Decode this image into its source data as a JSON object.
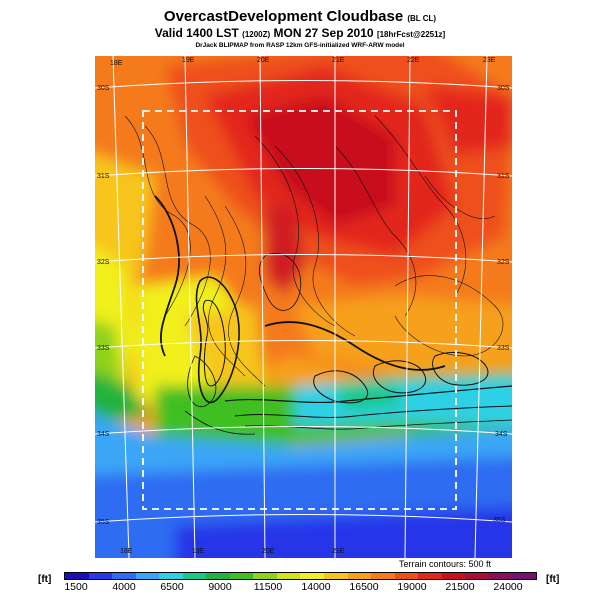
{
  "header": {
    "title": "OvercastDevelopment Cloudbase",
    "title_suffix": "(BL CL)",
    "valid_main": "Valid 1400 LST",
    "valid_code": "(1200Z)",
    "valid_date": "MON 27 Sep 2010",
    "valid_fcst": "[18hrFcst@2251z]",
    "credit": "DrJack BLIPMAP from RASP 12km GFS-initialized WRF-ARW model"
  },
  "map": {
    "lon_labels_top": [
      "18E",
      "19E",
      "20E",
      "21E",
      "22E",
      "23E"
    ],
    "lon_labels_bottom": [
      "18E",
      "19E",
      "20E",
      "21E"
    ],
    "lat_labels_left": [
      "30S",
      "31S",
      "32S",
      "33S",
      "34S",
      "35S"
    ],
    "lat_labels_right": [
      "30S",
      "31S",
      "32S",
      "33S",
      "34S",
      "35S"
    ],
    "terrain_note": "Terrain contours: 500 ft"
  },
  "colorbar": {
    "unit_left": "[ft]",
    "unit_right": "[ft]",
    "tick_labels": [
      "1500",
      "4000",
      "6500",
      "9000",
      "11500",
      "14000",
      "16500",
      "19000",
      "21500",
      "24000"
    ],
    "colors": [
      "#1a0fb8",
      "#2636e8",
      "#2f6cf2",
      "#3aa6f6",
      "#2fd0e6",
      "#18c98a",
      "#21b33d",
      "#3fbf23",
      "#8fd21b",
      "#cfe41a",
      "#f1ef1f",
      "#f7c51b",
      "#f7a01c",
      "#f47a1d",
      "#ee4f1b",
      "#e3261b",
      "#c80f1e",
      "#a50f3a",
      "#8a0f5e",
      "#7a0f78"
    ]
  }
}
